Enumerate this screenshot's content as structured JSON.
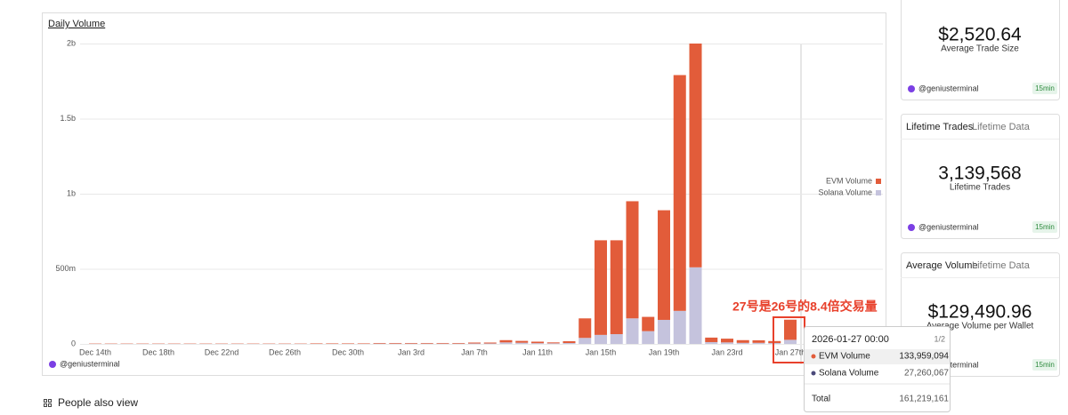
{
  "chart_data": {
    "type": "stacked_bar",
    "title": "Daily Volume",
    "categories": [
      "Dec 14th",
      null,
      null,
      null,
      "Dec 18th",
      null,
      null,
      null,
      "Dec 22nd",
      null,
      null,
      null,
      "Dec 26th",
      null,
      null,
      null,
      "Dec 30th",
      null,
      null,
      null,
      "Jan 3rd",
      null,
      null,
      null,
      "Jan 7th",
      null,
      null,
      null,
      "Jan 11th",
      null,
      null,
      null,
      "Jan 15th",
      null,
      null,
      null,
      "Jan 19th",
      null,
      null,
      null,
      "Jan 23rd",
      null,
      null,
      null,
      "Jan 27th"
    ],
    "series": [
      {
        "name": "EVM Volume",
        "color": "#e25c3a",
        "values": [
          2000000,
          2000000,
          2000000,
          2000000,
          2000000,
          2000000,
          2000000,
          2000000,
          2000000,
          2000000,
          2000000,
          2000000,
          2000000,
          2000000,
          3000000,
          3000000,
          3000000,
          3000000,
          4000000,
          4000000,
          4000000,
          4000000,
          4000000,
          4000000,
          6000000,
          6000000,
          15000000,
          12000000,
          10000000,
          6000000,
          12000000,
          130000000,
          630000000,
          625000000,
          780000000,
          95000000,
          730000000,
          1570000000,
          1490000000,
          30000000,
          25000000,
          18000000,
          17000000,
          13000000,
          133959094
        ]
      },
      {
        "name": "Solana Volume",
        "color": "#c5c3dd",
        "values": [
          1000000,
          1000000,
          1000000,
          1000000,
          1000000,
          1000000,
          1000000,
          1000000,
          1000000,
          1000000,
          1000000,
          1000000,
          1000000,
          1000000,
          1000000,
          1000000,
          1000000,
          1000000,
          2000000,
          2000000,
          2000000,
          2000000,
          2000000,
          2000000,
          3000000,
          3000000,
          10000000,
          8000000,
          5000000,
          4000000,
          6000000,
          40000000,
          60000000,
          65000000,
          170000000,
          85000000,
          160000000,
          220000000,
          510000000,
          12000000,
          10000000,
          7000000,
          7000000,
          6000000,
          27260067
        ]
      }
    ],
    "ylim": [
      0,
      2000000000
    ],
    "yticks": [
      0,
      {
        "value": 500000000,
        "label": "500m"
      },
      {
        "value": 1000000000,
        "label": "1b"
      },
      {
        "value": 1500000000,
        "label": "1.5b"
      },
      {
        "value": 2000000000,
        "label": "2b"
      }
    ],
    "grid": true,
    "legend": "right",
    "watermark": "@geniusterminal",
    "annotation": "27号是26号的8.4倍交易量"
  },
  "tooltip": {
    "date": "2026-01-27 00:00",
    "page": "1/2",
    "rows": [
      {
        "name": "EVM Volume",
        "value": "133,959,094"
      },
      {
        "name": "Solana Volume",
        "value": "27,260,067"
      }
    ],
    "total_label": "Total",
    "total": "161,219,161"
  },
  "cards": [
    {
      "value": "$2,520.64",
      "label": "Average Trade Size",
      "handle": "@geniusterminal",
      "badge": "15min"
    },
    {
      "header": "Lifetime Trades",
      "subheader": "Lifetime Data",
      "value": "3,139,568",
      "label": "Lifetime Trades",
      "handle": "@geniusterminal",
      "badge": "15min"
    },
    {
      "header": "Average Volume",
      "subheader": "Lifetime Data",
      "value": "$129,490.96",
      "label": "Average Volume per Wallet",
      "handle": "@geniusterminal",
      "badge": "15min"
    }
  ],
  "footer": "People also view"
}
